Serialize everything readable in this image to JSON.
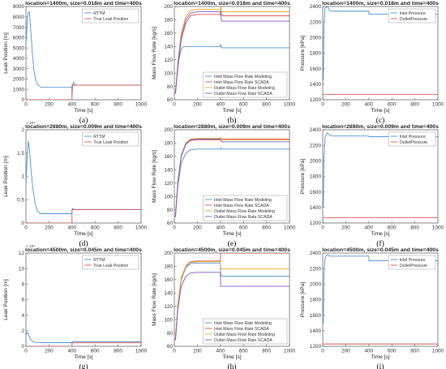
{
  "colors": {
    "blue": "#4a90d9",
    "red": "#d9534f",
    "yellow": "#e6a817",
    "purple": "#7e57c2",
    "axis": "#555555"
  },
  "chart_data": [
    {
      "type": "line",
      "panel_label": "(a)",
      "title": "location=1400m, size=0.018m and time=400s",
      "xlabel": "Time [s]",
      "ylabel": "Leak Position [m]",
      "xlim": [
        0,
        1000
      ],
      "ylim": [
        0,
        9000
      ],
      "xticks": [
        0,
        200,
        400,
        600,
        800,
        1000
      ],
      "yticks": [
        0,
        1000,
        2000,
        3000,
        4000,
        5000,
        6000,
        7000,
        8000,
        9000
      ],
      "ytick_labels": [
        "0",
        "1000",
        "2000",
        "3000",
        "4000",
        "5000",
        "6000",
        "7000",
        "8000",
        "9000"
      ],
      "y_exponent": "",
      "legend": "top-right",
      "series": [
        {
          "name": "RTTM",
          "color": "blue",
          "x": [
            0,
            5,
            12,
            20,
            30,
            40,
            55,
            70,
            85,
            100,
            130,
            170,
            230,
            300,
            380,
            399,
            402,
            405,
            412,
            420,
            440,
            480,
            600,
            800,
            1000
          ],
          "y": [
            5400,
            6300,
            7800,
            8400,
            8500,
            7000,
            4600,
            2800,
            1900,
            1500,
            1200,
            1200,
            1200,
            1200,
            1200,
            1200,
            500,
            1300,
            1700,
            1500,
            1400,
            1400,
            1400,
            1400,
            1400
          ]
        },
        {
          "name": "True Leak Position",
          "color": "red",
          "x": [
            0,
            400,
            400,
            1000
          ],
          "y": [
            0,
            0,
            1400,
            1400
          ]
        }
      ]
    },
    {
      "type": "line",
      "panel_label": "(b)",
      "title": "location=1400m, size=0.018m and time=400s",
      "xlabel": "Time [s]",
      "ylabel": "Mass Flow Rate [kg/s]",
      "xlim": [
        0,
        1000
      ],
      "ylim": [
        60,
        200
      ],
      "xticks": [
        0,
        200,
        400,
        600,
        800,
        1000
      ],
      "yticks": [
        60,
        80,
        100,
        120,
        140,
        160,
        180,
        200
      ],
      "ytick_labels": [
        "60",
        "80",
        "100",
        "120",
        "140",
        "160",
        "180",
        "200"
      ],
      "y_exponent": "",
      "legend": "bottom-right",
      "series": [
        {
          "name": "Inlet Mass Flow Rate Modeling",
          "color": "blue",
          "x": [
            0,
            10,
            20,
            40,
            60,
            80,
            120,
            200,
            400,
            402,
            410,
            420,
            1000
          ],
          "y": [
            70,
            70,
            90,
            120,
            136,
            140,
            140,
            140,
            140,
            143,
            138,
            138,
            138
          ]
        },
        {
          "name": "Inlet Mass Flow Rate SCADA",
          "color": "red",
          "x": [
            0,
            10,
            30,
            60,
            100,
            140,
            200,
            400,
            402,
            410,
            420,
            1000
          ],
          "y": [
            70,
            70,
            110,
            150,
            175,
            186,
            188,
            188,
            194,
            187,
            186,
            186
          ]
        },
        {
          "name": "Outlet Mass Flow Rate Modeling",
          "color": "yellow",
          "x": [
            0,
            10,
            30,
            60,
            100,
            140,
            200,
            400,
            402,
            410,
            420,
            1000
          ],
          "y": [
            70,
            70,
            115,
            160,
            185,
            194,
            196,
            196,
            200,
            192,
            192,
            192
          ]
        },
        {
          "name": "Outlet Mass Flow Rate SCADA",
          "color": "purple",
          "x": [
            0,
            10,
            30,
            60,
            100,
            140,
            200,
            400,
            402,
            410,
            420,
            1000
          ],
          "y": [
            70,
            70,
            112,
            155,
            180,
            190,
            192,
            192,
            190,
            178,
            178,
            178
          ]
        }
      ]
    },
    {
      "type": "line",
      "panel_label": "(c)",
      "title": "location=1400m, size=0.018m and time=400s",
      "xlabel": "Time [s]",
      "ylabel": "Pressure [kPa]",
      "xlim": [
        0,
        1000
      ],
      "ylim": [
        1200,
        2400
      ],
      "xticks": [
        0,
        200,
        400,
        600,
        800,
        1000
      ],
      "yticks": [
        1200,
        1400,
        1600,
        1800,
        2000,
        2200,
        2400
      ],
      "ytick_labels": [
        "1200",
        "1400",
        "1600",
        "1800",
        "2000",
        "2200",
        "2400"
      ],
      "y_exponent": "",
      "legend": "top-right",
      "series": [
        {
          "name": "Inlet Pressure",
          "color": "blue",
          "x": [
            0,
            5,
            10,
            20,
            40,
            60,
            80,
            150,
            300,
            400,
            402,
            410,
            1000
          ],
          "y": [
            1450,
            1450,
            2100,
            2380,
            2400,
            2350,
            2340,
            2340,
            2340,
            2340,
            2300,
            2300,
            2300
          ]
        },
        {
          "name": "OutletPressure",
          "color": "red",
          "x": [
            0,
            1000
          ],
          "y": [
            1270,
            1270
          ]
        }
      ]
    },
    {
      "type": "line",
      "panel_label": "(d)",
      "title": "location=2880m, size=0.009m and time=400s",
      "xlabel": "Time [s]",
      "ylabel": "Leak Position [m]",
      "xlim": [
        0,
        1000
      ],
      "ylim": [
        0,
        20000
      ],
      "xticks": [
        0,
        200,
        400,
        600,
        800,
        1000
      ],
      "yticks": [
        0,
        5000,
        10000,
        15000,
        20000
      ],
      "ytick_labels": [
        "0",
        "0.5",
        "1",
        "1.5",
        "2"
      ],
      "y_exponent": "× 10⁴",
      "legend": "top-right",
      "series": [
        {
          "name": "RTTM",
          "color": "blue",
          "x": [
            0,
            10,
            20,
            30,
            45,
            60,
            80,
            100,
            130,
            200,
            300,
            399,
            400,
            405,
            420,
            600,
            800,
            1000
          ],
          "y": [
            8000,
            14000,
            17500,
            16000,
            11000,
            7500,
            4200,
            2500,
            2000,
            2000,
            2000,
            2000,
            2600,
            3100,
            2900,
            2900,
            2900,
            2900
          ]
        },
        {
          "name": "True Leak Position",
          "color": "red",
          "x": [
            0,
            400,
            400,
            1000
          ],
          "y": [
            0,
            0,
            2880,
            2880
          ]
        }
      ]
    },
    {
      "type": "line",
      "panel_label": "(e)",
      "title": "location=2880m, size=0.009m and time=400s",
      "xlabel": "Time [s]",
      "ylabel": "Mass Flow Rate [kg/s]",
      "xlim": [
        0,
        1000
      ],
      "ylim": [
        60,
        200
      ],
      "xticks": [
        0,
        200,
        400,
        600,
        800,
        1000
      ],
      "yticks": [
        60,
        80,
        100,
        120,
        140,
        160,
        180,
        200
      ],
      "ytick_labels": [
        "60",
        "80",
        "100",
        "120",
        "140",
        "160",
        "180",
        "200"
      ],
      "y_exponent": "",
      "legend": "bottom-right",
      "series": [
        {
          "name": "Inlet Mass Flow Rate Modeling",
          "color": "blue",
          "x": [
            0,
            10,
            30,
            60,
            100,
            140,
            200,
            400,
            402,
            410,
            1000
          ],
          "y": [
            70,
            70,
            115,
            150,
            165,
            170,
            171,
            171,
            173,
            171,
            171
          ]
        },
        {
          "name": "Inlet Mass Flow Rate SCADA",
          "color": "red",
          "x": [
            0,
            10,
            30,
            60,
            100,
            140,
            200,
            400,
            402,
            410,
            1000
          ],
          "y": [
            70,
            70,
            120,
            160,
            178,
            184,
            185,
            185,
            188,
            186,
            186
          ]
        },
        {
          "name": "Outlet Mass Flow Rate Modeling",
          "color": "yellow",
          "x": [
            0,
            10,
            30,
            60,
            100,
            140,
            200,
            400,
            402,
            410,
            1000
          ],
          "y": [
            70,
            70,
            122,
            162,
            180,
            186,
            187,
            187,
            189,
            185,
            185
          ]
        },
        {
          "name": "Outlet Mass Flow Rate SCADA",
          "color": "purple",
          "x": [
            0,
            10,
            30,
            60,
            100,
            140,
            200,
            400,
            402,
            410,
            1000
          ],
          "y": [
            70,
            70,
            121,
            161,
            179,
            185,
            186,
            186,
            184,
            182,
            182
          ]
        }
      ]
    },
    {
      "type": "line",
      "panel_label": "(f)",
      "title": "location=2880m, size=0.009m and time=400s",
      "xlabel": "Time [s]",
      "ylabel": "Pressure [kPa]",
      "xlim": [
        0,
        1000
      ],
      "ylim": [
        1200,
        2400
      ],
      "xticks": [
        0,
        200,
        400,
        600,
        800,
        1000
      ],
      "yticks": [
        1200,
        1400,
        1600,
        1800,
        2000,
        2200,
        2400
      ],
      "ytick_labels": [
        "1200",
        "1400",
        "1600",
        "1800",
        "2000",
        "2200",
        "2400"
      ],
      "y_exponent": "",
      "legend": "top-right",
      "series": [
        {
          "name": "Inlet Pressure",
          "color": "blue",
          "x": [
            0,
            5,
            10,
            20,
            40,
            60,
            80,
            150,
            300,
            400,
            402,
            410,
            1000
          ],
          "y": [
            1400,
            1400,
            2000,
            2300,
            2360,
            2330,
            2320,
            2320,
            2320,
            2320,
            2310,
            2310,
            2310
          ]
        },
        {
          "name": "OutletPressure",
          "color": "red",
          "x": [
            0,
            1000
          ],
          "y": [
            1270,
            1270
          ]
        }
      ]
    },
    {
      "type": "line",
      "panel_label": "(g)",
      "title": "location=4500m, size=0.045m and time=400s",
      "xlabel": "Time [s]",
      "ylabel": "Leak Position [m]",
      "xlim": [
        0,
        1000
      ],
      "ylim": [
        0,
        120000
      ],
      "xticks": [
        0,
        200,
        400,
        600,
        800,
        1000
      ],
      "yticks": [
        0,
        20000,
        40000,
        60000,
        80000,
        100000,
        120000
      ],
      "ytick_labels": [
        "0",
        "2",
        "4",
        "6",
        "8",
        "10",
        "12"
      ],
      "y_exponent": "× 10⁴",
      "legend": "top-right",
      "series": [
        {
          "name": "RTTM",
          "color": "blue",
          "x": [
            0,
            10,
            20,
            30,
            40,
            60,
            80,
            120,
            200,
            399,
            400,
            410,
            420,
            600,
            800,
            1000
          ],
          "y": [
            14000,
            18000,
            16000,
            12000,
            9000,
            6000,
            5000,
            4800,
            4700,
            4700,
            5500,
            6200,
            6000,
            6000,
            6000,
            6000
          ]
        },
        {
          "name": "True Leak Position",
          "color": "red",
          "x": [
            0,
            400,
            400,
            1000
          ],
          "y": [
            0,
            0,
            4500,
            4500
          ]
        }
      ]
    },
    {
      "type": "line",
      "panel_label": "(h)",
      "title": "location=4500m, size=0.045m and time=400s",
      "xlabel": "Time [s]",
      "ylabel": "Mass Flow Rate [kg/s]",
      "xlim": [
        0,
        1000
      ],
      "ylim": [
        60,
        200
      ],
      "xticks": [
        0,
        200,
        400,
        600,
        800,
        1000
      ],
      "yticks": [
        60,
        80,
        100,
        120,
        140,
        160,
        180,
        200
      ],
      "ytick_labels": [
        "60",
        "80",
        "100",
        "120",
        "140",
        "160",
        "180",
        "200"
      ],
      "y_exponent": "",
      "legend": "bottom-right",
      "series": [
        {
          "name": "Inlet Mass Flow Rate Modeling",
          "color": "blue",
          "x": [
            0,
            10,
            30,
            60,
            100,
            140,
            200,
            400,
            402,
            410,
            420,
            1000
          ],
          "y": [
            70,
            70,
            120,
            160,
            178,
            184,
            185,
            185,
            170,
            165,
            165,
            165
          ]
        },
        {
          "name": "Inlet Mass Flow Rate SCADA",
          "color": "red",
          "x": [
            0,
            10,
            30,
            60,
            100,
            140,
            200,
            400,
            402,
            410,
            420,
            1000
          ],
          "y": [
            70,
            70,
            122,
            163,
            181,
            187,
            188,
            188,
            205,
            200,
            200,
            200
          ]
        },
        {
          "name": "Outlet Mass Flow Rate Modeling",
          "color": "yellow",
          "x": [
            0,
            10,
            30,
            60,
            100,
            140,
            200,
            400,
            402,
            410,
            420,
            1000
          ],
          "y": [
            70,
            70,
            121,
            162,
            180,
            186,
            187,
            187,
            178,
            176,
            176,
            176
          ]
        },
        {
          "name": "Outlet Mass Flow Rate SCADA",
          "color": "purple",
          "x": [
            0,
            10,
            30,
            60,
            100,
            140,
            200,
            400,
            402,
            410,
            420,
            1000
          ],
          "y": [
            70,
            70,
            115,
            150,
            165,
            170,
            171,
            171,
            150,
            150,
            150,
            150
          ]
        }
      ]
    },
    {
      "type": "line",
      "panel_label": "(i)",
      "title": "location=4500m, size=0.045m and time=400s",
      "xlabel": "Time [s]",
      "ylabel": "Pressure [kPa]",
      "xlim": [
        0,
        1000
      ],
      "ylim": [
        1200,
        2400
      ],
      "xticks": [
        0,
        200,
        400,
        600,
        800,
        1000
      ],
      "yticks": [
        1200,
        1400,
        1600,
        1800,
        2000,
        2200,
        2400
      ],
      "ytick_labels": [
        "1200",
        "1400",
        "1600",
        "1800",
        "2000",
        "2200",
        "2400"
      ],
      "y_exponent": "",
      "legend": "top-right",
      "series": [
        {
          "name": "Inlet Pressure",
          "color": "blue",
          "x": [
            0,
            5,
            10,
            20,
            40,
            60,
            80,
            150,
            300,
            400,
            402,
            410,
            1000
          ],
          "y": [
            1500,
            1500,
            2100,
            2340,
            2380,
            2360,
            2360,
            2360,
            2360,
            2360,
            2300,
            2300,
            2300
          ]
        },
        {
          "name": "OutletPressure",
          "color": "red",
          "x": [
            0,
            1000
          ],
          "y": [
            1230,
            1230
          ]
        }
      ]
    }
  ]
}
